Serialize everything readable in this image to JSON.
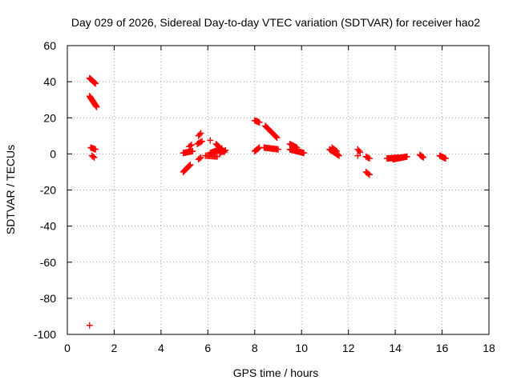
{
  "chart_data": {
    "type": "scatter",
    "title": "Day 029 of 2026, Sidereal Day-to-day VTEC variation (SDTVAR) for receiver hao2",
    "xlabel": "GPS time / hours",
    "ylabel": "SDTVAR / TECUs",
    "xlim": [
      0,
      18
    ],
    "ylim": [
      -100,
      60
    ],
    "xticks": [
      "0",
      "2",
      "4",
      "6",
      "8",
      "10",
      "12",
      "14",
      "16",
      "18"
    ],
    "yticks": [
      "-100",
      "-80",
      "-60",
      "-40",
      "-20",
      "0",
      "20",
      "40",
      "60"
    ],
    "grid": true,
    "marker": "plus",
    "color": "#ff0000",
    "segments": [
      {
        "x0": 0.95,
        "x1": 1.2,
        "y0": 42,
        "y1": 39,
        "n": 10
      },
      {
        "x0": 0.95,
        "x1": 1.25,
        "y0": 32,
        "y1": 26,
        "n": 14
      },
      {
        "x0": 1.0,
        "x1": 1.2,
        "y0": 3.5,
        "y1": 2.5,
        "n": 6
      },
      {
        "x0": 1.05,
        "x1": 1.15,
        "y0": -1,
        "y1": -2,
        "n": 3
      },
      {
        "x0": 4.95,
        "x1": 5.25,
        "y0": -10,
        "y1": -6,
        "n": 10
      },
      {
        "x0": 4.95,
        "x1": 5.35,
        "y0": 0.5,
        "y1": 1.5,
        "n": 10
      },
      {
        "x0": 5.2,
        "x1": 5.3,
        "y0": 4,
        "y1": 5,
        "n": 3
      },
      {
        "x0": 5.55,
        "x1": 5.75,
        "y0": 5.5,
        "y1": 7,
        "n": 5
      },
      {
        "x0": 5.6,
        "x1": 5.7,
        "y0": 10,
        "y1": 11.5,
        "n": 3
      },
      {
        "x0": 5.6,
        "x1": 5.7,
        "y0": -3,
        "y1": -2,
        "n": 3
      },
      {
        "x0": 6.1,
        "x1": 6.15,
        "y0": 7.5,
        "y1": 7.5,
        "n": 1
      },
      {
        "x0": 5.9,
        "x1": 6.4,
        "y0": -1,
        "y1": -1.5,
        "n": 10
      },
      {
        "x0": 6.1,
        "x1": 6.6,
        "y0": 0.5,
        "y1": 3,
        "n": 14
      },
      {
        "x0": 6.35,
        "x1": 6.7,
        "y0": 5.5,
        "y1": 1,
        "n": 10
      },
      {
        "x0": 6.5,
        "x1": 6.75,
        "y0": 0.5,
        "y1": 2,
        "n": 6
      },
      {
        "x0": 8.0,
        "x1": 8.2,
        "y0": 18.5,
        "y1": 17.5,
        "n": 6
      },
      {
        "x0": 8.0,
        "x1": 8.2,
        "y0": 1.5,
        "y1": 3.5,
        "n": 6
      },
      {
        "x0": 8.45,
        "x1": 8.95,
        "y0": 15.5,
        "y1": 9,
        "n": 14
      },
      {
        "x0": 8.4,
        "x1": 9.0,
        "y0": 3.5,
        "y1": 2.5,
        "n": 14
      },
      {
        "x0": 9.5,
        "x1": 9.8,
        "y0": 5.5,
        "y1": 3.5,
        "n": 8
      },
      {
        "x0": 9.5,
        "x1": 10.1,
        "y0": 2.5,
        "y1": 0.5,
        "n": 16
      },
      {
        "x0": 11.2,
        "x1": 11.6,
        "y0": 2.5,
        "y1": -1,
        "n": 12
      },
      {
        "x0": 11.3,
        "x1": 11.5,
        "y0": 3.5,
        "y1": 1.5,
        "n": 5
      },
      {
        "x0": 12.4,
        "x1": 12.5,
        "y0": 2.5,
        "y1": 1,
        "n": 3
      },
      {
        "x0": 12.4,
        "x1": 12.45,
        "y0": -1,
        "y1": -1,
        "n": 1
      },
      {
        "x0": 12.75,
        "x1": 12.9,
        "y0": -1.5,
        "y1": -2.5,
        "n": 4
      },
      {
        "x0": 12.75,
        "x1": 12.9,
        "y0": -10,
        "y1": -11.5,
        "n": 4
      },
      {
        "x0": 13.65,
        "x1": 14.3,
        "y0": -2.5,
        "y1": -2,
        "n": 18
      },
      {
        "x0": 13.9,
        "x1": 14.5,
        "y0": -3,
        "y1": -1.5,
        "n": 16
      },
      {
        "x0": 15.05,
        "x1": 15.2,
        "y0": -0.5,
        "y1": -2,
        "n": 5
      },
      {
        "x0": 15.9,
        "x1": 16.15,
        "y0": -1,
        "y1": -2.5,
        "n": 8
      }
    ],
    "points": [
      {
        "x": 0.95,
        "y": -95
      }
    ]
  }
}
